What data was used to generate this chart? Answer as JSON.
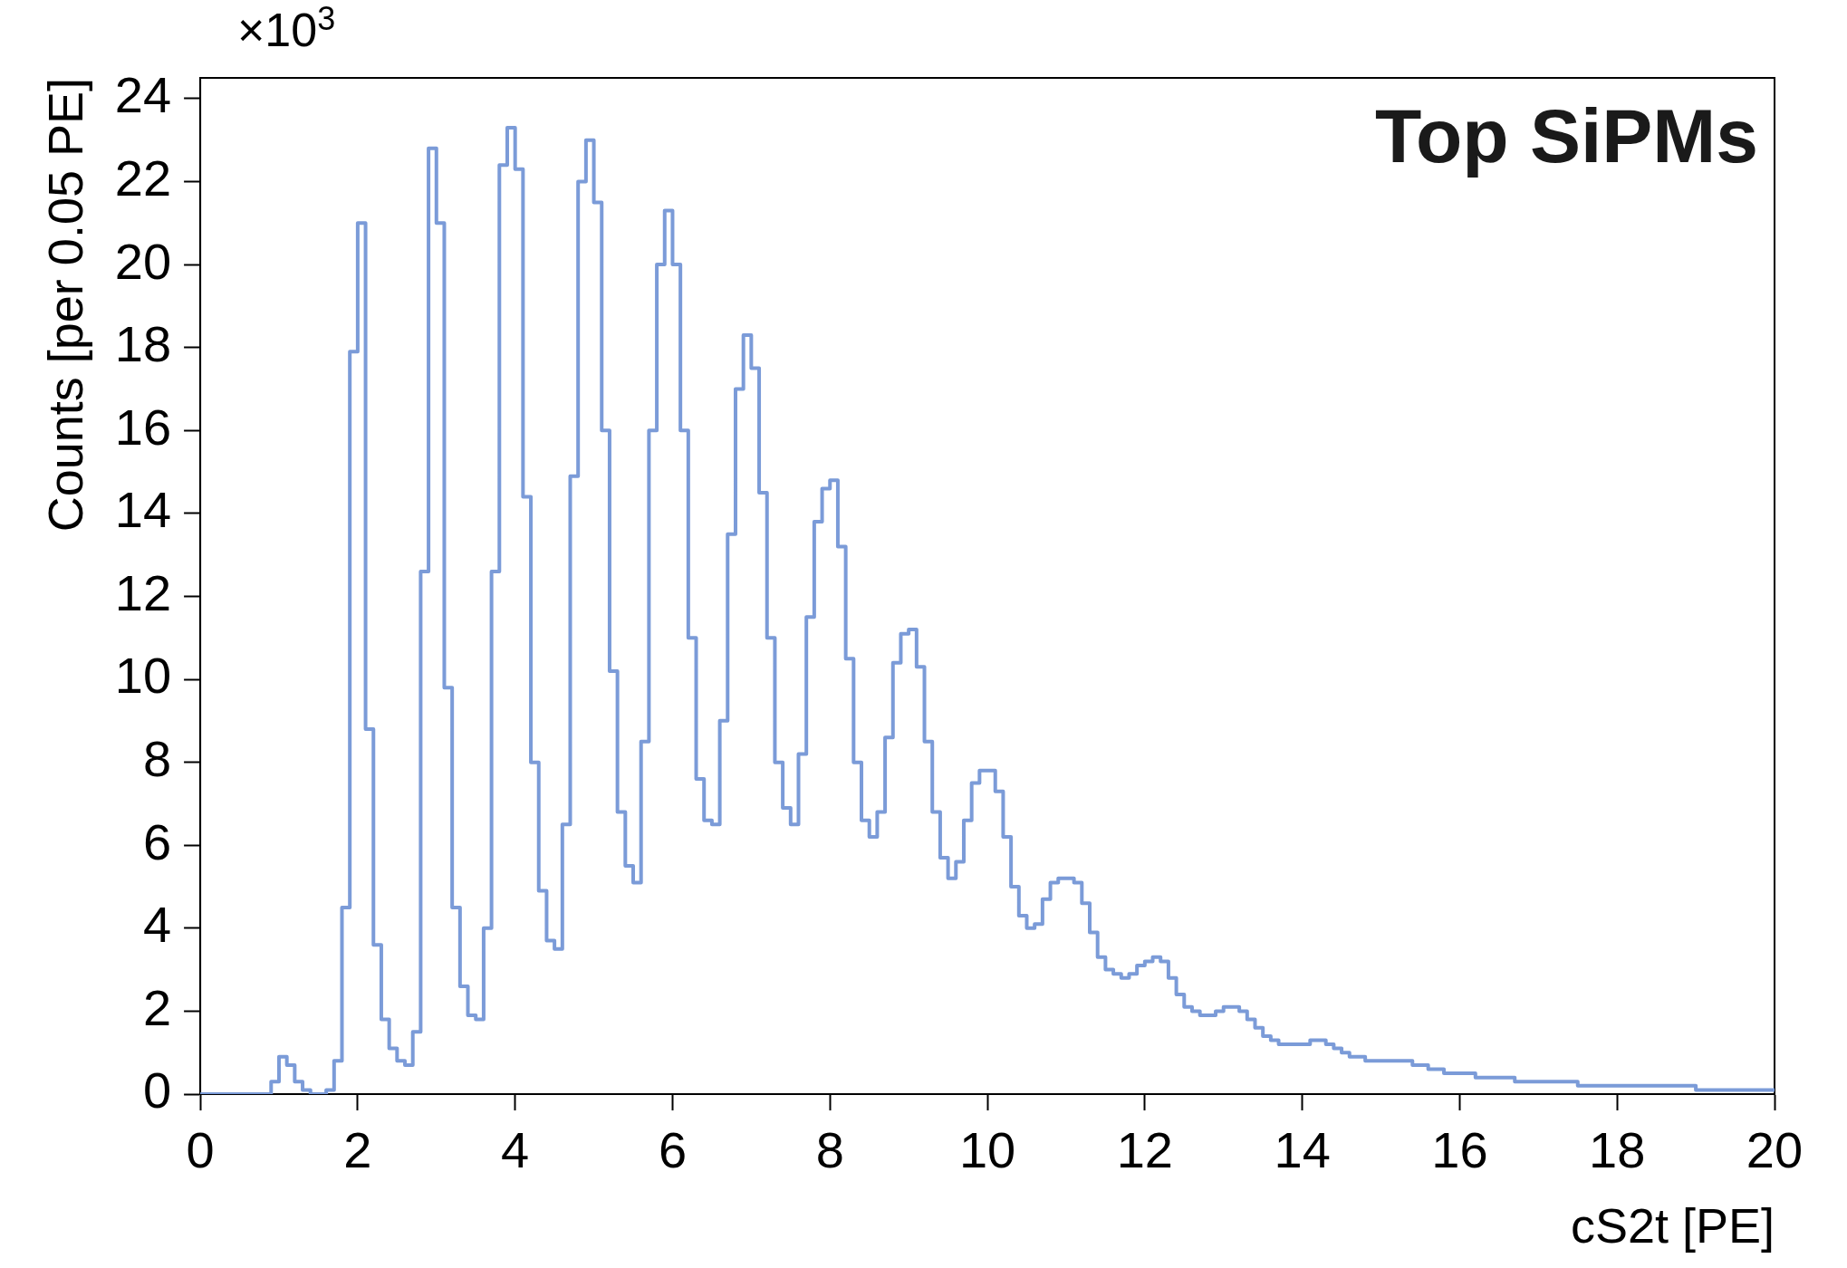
{
  "chart_data": {
    "type": "histogram",
    "title": "Top SiPMs",
    "xlabel": "cS2t [PE]",
    "ylabel": "Counts [per 0.05 PE]",
    "annotations": [
      "×10$^{3}$"
    ],
    "color": "#7b9bd8",
    "grid": false,
    "legend": false,
    "xlim": [
      0,
      20
    ],
    "xticks": [
      0,
      2,
      4,
      6,
      8,
      10,
      12,
      14,
      16,
      18,
      20
    ],
    "ylim": [
      0,
      24.5
    ],
    "yticks": [
      0,
      2,
      4,
      6,
      8,
      10,
      12,
      14,
      16,
      18,
      20,
      22,
      24
    ],
    "bins": [
      0,
      0.1,
      0.2,
      0.3,
      0.4,
      0.5,
      0.6,
      0.7,
      0.8,
      0.9,
      1,
      1.1,
      1.2,
      1.3,
      1.4,
      1.5,
      1.6,
      1.7,
      1.8,
      1.9,
      2,
      2.1,
      2.2,
      2.3,
      2.4,
      2.5,
      2.6,
      2.7,
      2.8,
      2.9,
      3,
      3.1,
      3.2,
      3.3,
      3.4,
      3.5,
      3.6,
      3.7,
      3.8,
      3.9,
      4,
      4.1,
      4.2,
      4.3,
      4.4,
      4.5,
      4.6,
      4.7,
      4.8,
      4.9,
      5,
      5.1,
      5.2,
      5.3,
      5.4,
      5.5,
      5.6,
      5.7,
      5.8,
      5.9,
      6,
      6.1,
      6.2,
      6.3,
      6.4,
      6.5,
      6.6,
      6.7,
      6.8,
      6.9,
      7,
      7.1,
      7.2,
      7.3,
      7.4,
      7.5,
      7.6,
      7.7,
      7.8,
      7.9,
      8,
      8.1,
      8.2,
      8.3,
      8.4,
      8.5,
      8.6,
      8.7,
      8.8,
      8.9,
      9,
      9.1,
      9.2,
      9.3,
      9.4,
      9.5,
      9.6,
      9.7,
      9.8,
      9.9,
      10,
      10.1,
      10.2,
      10.3,
      10.4,
      10.5,
      10.6,
      10.7,
      10.8,
      10.9,
      11,
      11.1,
      11.2,
      11.3,
      11.4,
      11.5,
      11.6,
      11.7,
      11.8,
      11.9,
      12,
      12.1,
      12.2,
      12.3,
      12.4,
      12.5,
      12.6,
      12.7,
      12.8,
      12.9,
      13,
      13.1,
      13.2,
      13.3,
      13.4,
      13.5,
      13.6,
      13.7,
      13.8,
      13.9,
      14,
      14.1,
      14.2,
      14.3,
      14.4,
      14.5,
      14.6,
      14.7,
      14.8,
      14.9,
      15,
      15.1,
      15.2,
      15.3,
      15.4,
      15.5,
      15.6,
      15.7,
      15.8,
      15.9,
      16,
      16.1,
      16.2,
      16.3,
      16.4,
      16.5,
      16.6,
      16.7,
      16.8,
      16.9,
      17,
      17.1,
      17.2,
      17.3,
      17.4,
      17.5,
      17.6,
      17.7,
      17.8,
      17.9,
      18,
      18.1,
      18.2,
      18.3,
      18.4,
      18.5,
      18.6,
      18.7,
      18.8,
      18.9,
      19,
      19.1,
      19.2,
      19.3,
      19.4,
      19.5,
      19.6,
      19.7,
      19.8,
      19.9,
      20
    ],
    "values": [
      0,
      0,
      0,
      0,
      0,
      0,
      0,
      0,
      0,
      0.3,
      0.9,
      0.7,
      0.3,
      0.1,
      0,
      0,
      0.1,
      0.8,
      4.5,
      17.9,
      21.0,
      8.8,
      3.6,
      1.8,
      1.1,
      0.8,
      0.7,
      1.5,
      12.6,
      22.8,
      21.0,
      9.8,
      4.5,
      2.6,
      1.9,
      1.8,
      4.0,
      12.6,
      22.4,
      23.3,
      22.3,
      14.4,
      8.0,
      4.9,
      3.7,
      3.5,
      6.5,
      14.9,
      22.0,
      23.0,
      21.5,
      16.0,
      10.2,
      6.8,
      5.5,
      5.1,
      8.5,
      16.0,
      20.0,
      21.3,
      20.0,
      16.0,
      11.0,
      7.6,
      6.6,
      6.5,
      9.0,
      13.5,
      17.0,
      18.3,
      17.5,
      14.5,
      11.0,
      8.0,
      6.9,
      6.5,
      8.2,
      11.5,
      13.8,
      14.6,
      14.8,
      13.2,
      10.5,
      8.0,
      6.6,
      6.2,
      6.8,
      8.6,
      10.4,
      11.1,
      11.2,
      10.3,
      8.5,
      6.8,
      5.7,
      5.2,
      5.6,
      6.6,
      7.5,
      7.8,
      7.8,
      7.3,
      6.2,
      5.0,
      4.3,
      4.0,
      4.1,
      4.7,
      5.1,
      5.2,
      5.2,
      5.1,
      4.6,
      3.9,
      3.3,
      3.0,
      2.9,
      2.8,
      2.9,
      3.1,
      3.2,
      3.3,
      3.2,
      2.8,
      2.4,
      2.1,
      2.0,
      1.9,
      1.9,
      2.0,
      2.1,
      2.1,
      2.0,
      1.8,
      1.6,
      1.4,
      1.3,
      1.2,
      1.2,
      1.2,
      1.2,
      1.3,
      1.3,
      1.2,
      1.1,
      1.0,
      0.9,
      0.9,
      0.8,
      0.8,
      0.8,
      0.8,
      0.8,
      0.8,
      0.7,
      0.7,
      0.6,
      0.6,
      0.5,
      0.5,
      0.5,
      0.5,
      0.4,
      0.4,
      0.4,
      0.4,
      0.4,
      0.3,
      0.3,
      0.3,
      0.3,
      0.3,
      0.3,
      0.3,
      0.3,
      0.2,
      0.2,
      0.2,
      0.2,
      0.2,
      0.2,
      0.2,
      0.2,
      0.2,
      0.2,
      0.2,
      0.2,
      0.2,
      0.2,
      0.2,
      0.1,
      0.1,
      0.1,
      0.1,
      0.1,
      0.1,
      0.1,
      0.1,
      0.1,
      0.1
    ]
  }
}
